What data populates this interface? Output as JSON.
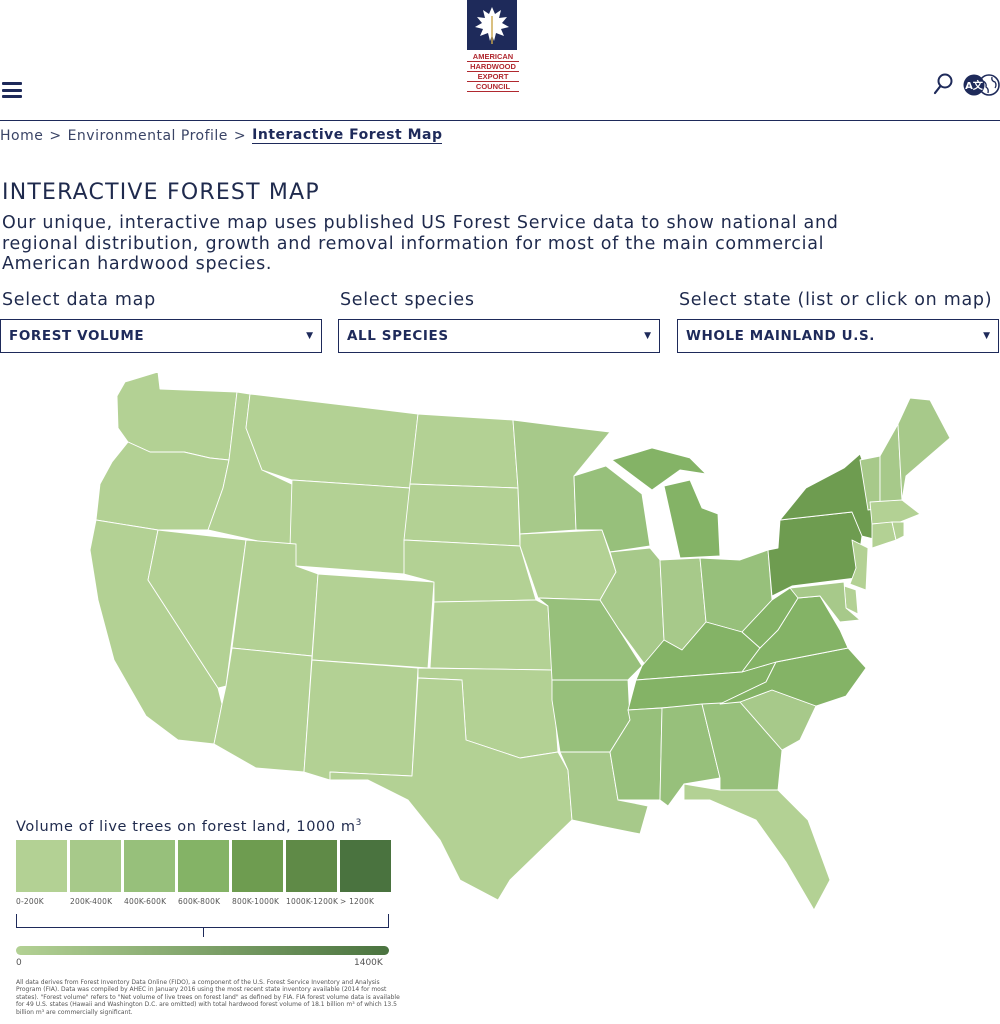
{
  "header": {
    "logo_lines": [
      "AMERICAN",
      "HARDWOOD",
      "EXPORT",
      "COUNCIL"
    ],
    "menu_icon": "hamburger-menu-icon",
    "search_icon": "search-icon",
    "language_icon": "translate-globe-icon",
    "language_badge": "A文"
  },
  "breadcrumb": {
    "home": "Home",
    "parent": "Environmental Profile",
    "current": "Interactive Forest Map",
    "separator": ">"
  },
  "page": {
    "title": "INTERACTIVE FOREST MAP",
    "intro": "Our unique, interactive map uses published US Forest Service data to show national and regional distribution, growth and removal information for most of the main commercial American hardwood species."
  },
  "selectors": {
    "data_map": {
      "label": "Select data map",
      "value": "FOREST VOLUME"
    },
    "species": {
      "label": "Select species",
      "value": "ALL SPECIES"
    },
    "state": {
      "label": "Select state (list or click on map)",
      "value": "WHOLE MAINLAND U.S."
    }
  },
  "legend": {
    "title": "Volume of live trees on forest land, 1000 m",
    "title_sup": "3",
    "bins": [
      {
        "label": "0-200K",
        "color": "#b3d194"
      },
      {
        "label": "200K-400K",
        "color": "#a7c98a"
      },
      {
        "label": "400K-600K",
        "color": "#97c07b"
      },
      {
        "label": "600K-800K",
        "color": "#84b366"
      },
      {
        "label": "800K-1000K",
        "color": "#6e9c50"
      },
      {
        "label": "1000K-1200K",
        "color": "#5f8a47"
      },
      {
        "label": "> 1200K",
        "color": "#4a733f"
      }
    ],
    "gradient_min": "0",
    "gradient_max": "1400K"
  },
  "footnote": "All data derives from Forest Inventory Data Online (FIDO), a component of the U.S. Forest Service Inventory and Analysis Program (FIA). Data was compiled by AHEC in January 2016 using the most recent state inventory available (2014 for most states). \"Forest volume\" refers to \"Net volume of live trees on forest land\" as defined by FIA. FIA forest volume data is available for 49 U.S. states (Hawaii and Washington D.C. are omitted) with total hardwood forest volume of 18.1 billion m³ of which 13.5 billion m³ are commercially significant.",
  "map": {
    "states": [
      {
        "id": "WA",
        "bin": 0
      },
      {
        "id": "OR",
        "bin": 0
      },
      {
        "id": "CA",
        "bin": 0
      },
      {
        "id": "ID",
        "bin": 0
      },
      {
        "id": "NV",
        "bin": 0
      },
      {
        "id": "MT",
        "bin": 0
      },
      {
        "id": "WY",
        "bin": 0
      },
      {
        "id": "UT",
        "bin": 0
      },
      {
        "id": "AZ",
        "bin": 0
      },
      {
        "id": "CO",
        "bin": 0
      },
      {
        "id": "NM",
        "bin": 0
      },
      {
        "id": "ND",
        "bin": 0
      },
      {
        "id": "SD",
        "bin": 0
      },
      {
        "id": "NE",
        "bin": 0
      },
      {
        "id": "KS",
        "bin": 0
      },
      {
        "id": "OK",
        "bin": 0
      },
      {
        "id": "TX",
        "bin": 0
      },
      {
        "id": "MN",
        "bin": 1
      },
      {
        "id": "IA",
        "bin": 0
      },
      {
        "id": "MO",
        "bin": 2
      },
      {
        "id": "AR",
        "bin": 2
      },
      {
        "id": "LA",
        "bin": 1
      },
      {
        "id": "WI",
        "bin": 2
      },
      {
        "id": "IL",
        "bin": 1
      },
      {
        "id": "MI",
        "bin": 3
      },
      {
        "id": "IN",
        "bin": 1
      },
      {
        "id": "OH",
        "bin": 2
      },
      {
        "id": "KY",
        "bin": 3
      },
      {
        "id": "TN",
        "bin": 3
      },
      {
        "id": "MS",
        "bin": 2
      },
      {
        "id": "AL",
        "bin": 2
      },
      {
        "id": "GA",
        "bin": 2
      },
      {
        "id": "FL",
        "bin": 0
      },
      {
        "id": "SC",
        "bin": 1
      },
      {
        "id": "NC",
        "bin": 3
      },
      {
        "id": "VA",
        "bin": 3
      },
      {
        "id": "WV",
        "bin": 3
      },
      {
        "id": "PA",
        "bin": 4
      },
      {
        "id": "NY",
        "bin": 4
      },
      {
        "id": "VT",
        "bin": 1
      },
      {
        "id": "NH",
        "bin": 1
      },
      {
        "id": "ME",
        "bin": 1
      },
      {
        "id": "MA",
        "bin": 0
      },
      {
        "id": "CT",
        "bin": 0
      },
      {
        "id": "RI",
        "bin": 0
      },
      {
        "id": "NJ",
        "bin": 0
      },
      {
        "id": "DE",
        "bin": 0
      },
      {
        "id": "MD",
        "bin": 1
      }
    ]
  }
}
